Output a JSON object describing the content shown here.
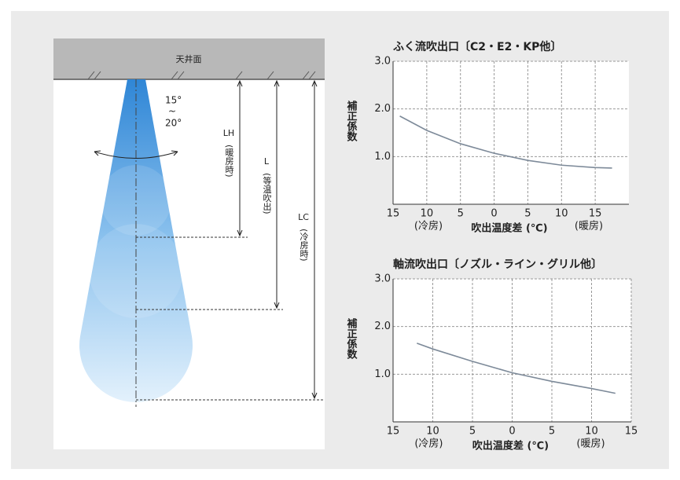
{
  "diagram": {
    "ceiling": "天井面",
    "angle_top": "15°",
    "angle_mid": "~",
    "angle_bottom": "20°",
    "lh": "LH",
    "lh_note": "(暖房時)",
    "l": "L",
    "l_note": "(等温吹出)",
    "lc": "LC",
    "lc_note": "(冷房時)"
  },
  "chart_data": [
    {
      "type": "line",
      "title": "ふく流吹出口〔C2・E2・KP他〕",
      "y_label": "補正係数",
      "x_label": "吹出温度差 (℃)",
      "annotations": [
        "(冷房)",
        "(暖房)"
      ],
      "x": [
        -14,
        -10,
        -5,
        0,
        5,
        10,
        15,
        17.5
      ],
      "values": [
        1.85,
        1.55,
        1.27,
        1.07,
        0.92,
        0.82,
        0.77,
        0.76
      ],
      "color": "#7d8a99",
      "xlim": [
        -15,
        20
      ],
      "ylim": [
        0,
        3
      ],
      "xticks": [
        {
          "value": -15,
          "label": "15"
        },
        {
          "value": -10,
          "label": "10"
        },
        {
          "value": -5,
          "label": "5"
        },
        0,
        5,
        10,
        15
      ],
      "yticks": [
        {
          "value": 1,
          "label": "1.0"
        },
        {
          "value": 2,
          "label": "2.0"
        },
        {
          "value": 3,
          "label": "3.0"
        }
      ],
      "grid": true
    },
    {
      "type": "line",
      "title": "軸流吹出口〔ノズル・ライン・グリル他〕",
      "y_label": "補正係数",
      "x_label": "吹出温度差 (℃)",
      "annotations": [
        "(冷房)",
        "(暖房)"
      ],
      "x": [
        -12,
        -10,
        -5,
        0,
        5,
        10,
        13
      ],
      "values": [
        1.65,
        1.53,
        1.27,
        1.03,
        0.85,
        0.7,
        0.6
      ],
      "color": "#7d8a99",
      "xlim": [
        -15,
        15
      ],
      "ylim": [
        0,
        3
      ],
      "xticks": [
        {
          "value": -15,
          "label": "15"
        },
        {
          "value": -10,
          "label": "10"
        },
        {
          "value": -5,
          "label": "5"
        },
        0,
        5,
        10,
        15
      ],
      "yticks": [
        {
          "value": 1,
          "label": "1.0"
        },
        {
          "value": 2,
          "label": "2.0"
        },
        {
          "value": 3,
          "label": "3.0"
        }
      ],
      "grid": true
    }
  ]
}
